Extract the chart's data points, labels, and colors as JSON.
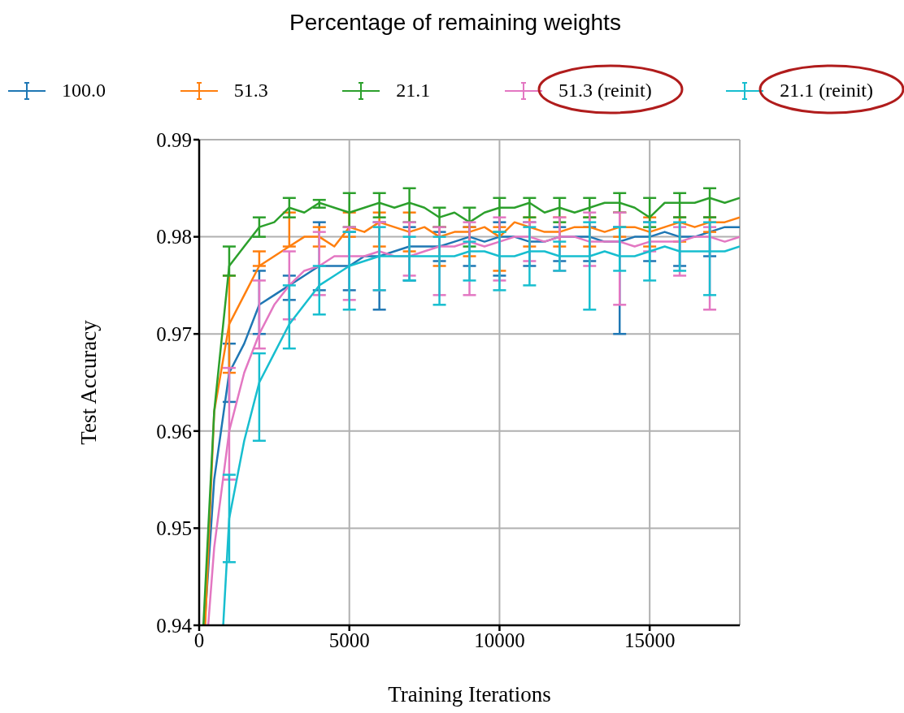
{
  "chart_data": {
    "type": "line",
    "legend_title": "Percentage of remaining weights",
    "xlabel": "Training Iterations",
    "ylabel": "Test Accuracy",
    "xlim": [
      0,
      18000
    ],
    "xticks": [
      0,
      5000,
      10000,
      15000
    ],
    "ylim": [
      0.94,
      0.99
    ],
    "yticks": [
      0.94,
      0.95,
      0.96,
      0.97,
      0.98,
      0.99
    ],
    "grid": true,
    "legend": "top",
    "series": [
      {
        "name": "100.0",
        "color": "#1f77b4",
        "x": [
          180,
          500,
          1000,
          1500,
          2000,
          2500,
          3000,
          3500,
          4000,
          4500,
          5000,
          5500,
          6000,
          6500,
          7000,
          7500,
          8000,
          8500,
          9000,
          9500,
          10000,
          10500,
          11000,
          11500,
          12000,
          12500,
          13000,
          13500,
          14000,
          14500,
          15000,
          15500,
          16000,
          16500,
          17000,
          17500,
          18000
        ],
        "values": [
          0.94,
          0.955,
          0.966,
          0.969,
          0.973,
          0.974,
          0.975,
          0.976,
          0.977,
          0.977,
          0.977,
          0.978,
          0.978,
          0.9785,
          0.979,
          0.979,
          0.979,
          0.9795,
          0.98,
          0.9795,
          0.98,
          0.98,
          0.9795,
          0.9795,
          0.98,
          0.98,
          0.98,
          0.9795,
          0.9795,
          0.98,
          0.98,
          0.9805,
          0.98,
          0.98,
          0.9805,
          0.981,
          0.981
        ],
        "errors": [
          null,
          null,
          [
            0.963,
            0.969
          ],
          null,
          [
            0.97,
            0.9765
          ],
          null,
          [
            0.9735,
            0.976
          ],
          null,
          [
            0.9745,
            0.9815
          ],
          null,
          [
            0.9745,
            0.9805
          ],
          null,
          [
            0.9725,
            0.9815
          ],
          null,
          [
            0.9755,
            0.981
          ],
          null,
          [
            0.9775,
            0.9805
          ],
          null,
          [
            0.977,
            0.981
          ],
          null,
          [
            0.976,
            0.9815
          ],
          null,
          [
            0.977,
            0.9815
          ],
          null,
          [
            0.9775,
            0.981
          ],
          null,
          [
            0.9775,
            0.981
          ],
          null,
          [
            0.97,
            0.981
          ],
          null,
          [
            0.9775,
            0.9815
          ],
          null,
          [
            0.977,
            0.982
          ],
          null,
          [
            0.978,
            0.982
          ],
          null,
          null
        ]
      },
      {
        "name": "51.3",
        "color": "#ff7f0e",
        "x": [
          200,
          500,
          1000,
          1500,
          2000,
          2500,
          3000,
          3500,
          4000,
          4500,
          5000,
          5500,
          6000,
          6500,
          7000,
          7500,
          8000,
          8500,
          9000,
          9500,
          10000,
          10500,
          11000,
          11500,
          12000,
          12500,
          13000,
          13500,
          14000,
          14500,
          15000,
          15500,
          16000,
          16500,
          17000,
          17500,
          18000
        ],
        "values": [
          0.94,
          0.962,
          0.971,
          0.974,
          0.977,
          0.978,
          0.979,
          0.98,
          0.98,
          0.979,
          0.981,
          0.9805,
          0.9815,
          0.981,
          0.9805,
          0.981,
          0.98,
          0.9805,
          0.9805,
          0.981,
          0.98,
          0.9815,
          0.981,
          0.9805,
          0.9805,
          0.981,
          0.981,
          0.9805,
          0.981,
          0.981,
          0.9805,
          0.981,
          0.9815,
          0.981,
          0.9815,
          0.9815,
          0.982
        ],
        "errors": [
          null,
          null,
          [
            0.966,
            0.976
          ],
          null,
          [
            0.977,
            0.9785
          ],
          null,
          [
            0.979,
            0.9825
          ],
          null,
          [
            0.979,
            0.981
          ],
          null,
          [
            0.98,
            0.9825
          ],
          null,
          [
            0.979,
            0.9825
          ],
          null,
          [
            0.9785,
            0.9825
          ],
          null,
          [
            0.977,
            0.981
          ],
          null,
          [
            0.978,
            0.981
          ],
          null,
          [
            0.9765,
            0.981
          ],
          null,
          [
            0.979,
            0.982
          ],
          null,
          [
            0.979,
            0.982
          ],
          null,
          [
            0.979,
            0.982
          ],
          null,
          [
            0.98,
            0.9825
          ],
          null,
          [
            0.979,
            0.982
          ],
          null,
          [
            0.9795,
            0.982
          ],
          null,
          [
            0.9805,
            0.982
          ],
          null,
          null
        ]
      },
      {
        "name": "21.1",
        "color": "#2ca02c",
        "x": [
          140,
          500,
          1000,
          1500,
          2000,
          2500,
          3000,
          3500,
          4000,
          4500,
          5000,
          5500,
          6000,
          6500,
          7000,
          7500,
          8000,
          8500,
          9000,
          9500,
          10000,
          10500,
          11000,
          11500,
          12000,
          12500,
          13000,
          13500,
          14000,
          14500,
          15000,
          15500,
          16000,
          16500,
          17000,
          17500,
          18000
        ],
        "values": [
          0.94,
          0.962,
          0.977,
          0.979,
          0.981,
          0.9815,
          0.983,
          0.9825,
          0.9835,
          0.983,
          0.9825,
          0.983,
          0.9835,
          0.983,
          0.9835,
          0.983,
          0.982,
          0.9825,
          0.9815,
          0.9825,
          0.983,
          0.983,
          0.9835,
          0.9825,
          0.983,
          0.9825,
          0.983,
          0.9835,
          0.9835,
          0.983,
          0.982,
          0.9835,
          0.9835,
          0.9835,
          0.984,
          0.9835,
          0.984
        ],
        "errors": [
          null,
          null,
          [
            0.976,
            0.979
          ],
          null,
          [
            0.98,
            0.982
          ],
          null,
          [
            0.982,
            0.984
          ],
          null,
          [
            0.983,
            0.9838
          ],
          null,
          [
            0.981,
            0.9845
          ],
          null,
          [
            0.982,
            0.9845
          ],
          null,
          [
            0.9815,
            0.985
          ],
          null,
          [
            0.981,
            0.983
          ],
          null,
          [
            0.979,
            0.983
          ],
          null,
          [
            0.9805,
            0.984
          ],
          null,
          [
            0.982,
            0.984
          ],
          null,
          [
            0.9815,
            0.984
          ],
          null,
          [
            0.982,
            0.984
          ],
          null,
          [
            0.9825,
            0.9845
          ],
          null,
          [
            0.981,
            0.984
          ],
          null,
          [
            0.982,
            0.9845
          ],
          null,
          [
            0.982,
            0.985
          ],
          null,
          null
        ]
      },
      {
        "name": "51.3 (reinit)",
        "color": "#e377c2",
        "x": [
          300,
          500,
          1000,
          1500,
          2000,
          2500,
          3000,
          3500,
          4000,
          4500,
          5000,
          5500,
          6000,
          6500,
          7000,
          7500,
          8000,
          8500,
          9000,
          9500,
          10000,
          10500,
          11000,
          11500,
          12000,
          12500,
          13000,
          13500,
          14000,
          14500,
          15000,
          15500,
          16000,
          16500,
          17000,
          17500,
          18000
        ],
        "values": [
          0.94,
          0.948,
          0.96,
          0.966,
          0.97,
          0.973,
          0.975,
          0.9765,
          0.977,
          0.978,
          0.978,
          0.978,
          0.9785,
          0.978,
          0.978,
          0.9785,
          0.979,
          0.979,
          0.9795,
          0.979,
          0.9795,
          0.98,
          0.98,
          0.9795,
          0.98,
          0.98,
          0.9795,
          0.9795,
          0.9795,
          0.979,
          0.9795,
          0.9795,
          0.9795,
          0.98,
          0.98,
          0.9795,
          0.98
        ],
        "errors": [
          null,
          null,
          [
            0.955,
            0.9665
          ],
          null,
          [
            0.9685,
            0.9755
          ],
          null,
          [
            0.9715,
            0.9785
          ],
          null,
          [
            0.974,
            0.9805
          ],
          null,
          [
            0.9735,
            0.981
          ],
          null,
          [
            0.9745,
            0.9815
          ],
          null,
          [
            0.976,
            0.9815
          ],
          null,
          [
            0.974,
            0.981
          ],
          null,
          [
            0.974,
            0.9815
          ],
          null,
          [
            0.9755,
            0.982
          ],
          null,
          [
            0.9775,
            0.9815
          ],
          null,
          [
            0.9765,
            0.982
          ],
          null,
          [
            0.977,
            0.9825
          ],
          null,
          [
            0.973,
            0.9825
          ],
          null,
          [
            0.9785,
            0.9815
          ],
          null,
          [
            0.976,
            0.981
          ],
          null,
          [
            0.9725,
            0.981
          ],
          null,
          null
        ]
      },
      {
        "name": "21.1 (reinit)",
        "color": "#17becf",
        "x": [
          800,
          1000,
          1500,
          2000,
          2500,
          3000,
          3500,
          4000,
          4500,
          5000,
          5500,
          6000,
          6500,
          7000,
          7500,
          8000,
          8500,
          9000,
          9500,
          10000,
          10500,
          11000,
          11500,
          12000,
          12500,
          13000,
          13500,
          14000,
          14500,
          15000,
          15500,
          16000,
          16500,
          17000,
          17500,
          18000
        ],
        "values": [
          0.94,
          0.951,
          0.959,
          0.965,
          0.968,
          0.971,
          0.973,
          0.975,
          0.976,
          0.977,
          0.9775,
          0.978,
          0.978,
          0.978,
          0.978,
          0.978,
          0.978,
          0.9785,
          0.9785,
          0.978,
          0.978,
          0.9785,
          0.9785,
          0.978,
          0.978,
          0.978,
          0.9785,
          0.978,
          0.978,
          0.9785,
          0.979,
          0.9785,
          0.9785,
          0.9785,
          0.9785,
          0.979
        ],
        "errors": [
          null,
          [
            0.9465,
            0.9555
          ],
          null,
          [
            0.959,
            0.968
          ],
          null,
          [
            0.9685,
            0.975
          ],
          null,
          [
            0.972,
            0.977
          ],
          null,
          [
            0.9725,
            0.9805
          ],
          null,
          [
            0.9745,
            0.981
          ],
          null,
          [
            0.9755,
            0.98
          ],
          null,
          [
            0.973,
            0.98
          ],
          null,
          [
            0.9755,
            0.9795
          ],
          null,
          [
            0.9745,
            0.9805
          ],
          null,
          [
            0.975,
            0.981
          ],
          null,
          [
            0.9765,
            0.9795
          ],
          null,
          [
            0.9725,
            0.9815
          ],
          null,
          [
            0.9765,
            0.981
          ],
          null,
          [
            0.9755,
            0.9815
          ],
          null,
          [
            0.9765,
            0.9815
          ],
          null,
          [
            0.974,
            0.9815
          ],
          null,
          null
        ]
      }
    ]
  }
}
